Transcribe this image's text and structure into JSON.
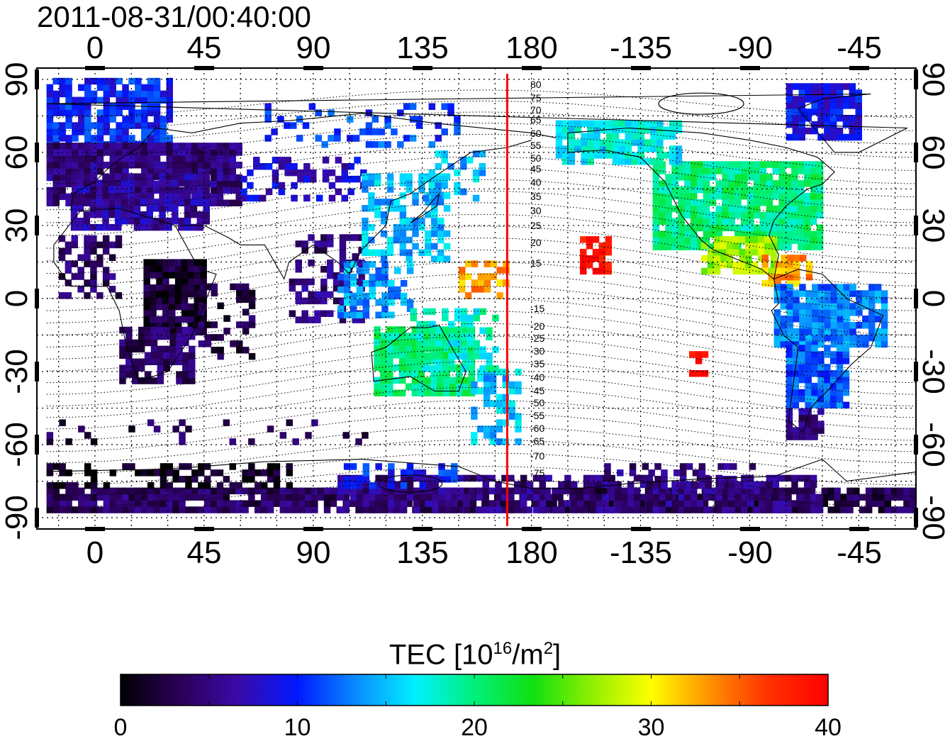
{
  "timestamp": "2011-08-31/00:40:00",
  "map": {
    "x_tick_labels": [
      "0",
      "45",
      "90",
      "135",
      "180",
      "-135",
      "-90",
      "-45"
    ],
    "y_tick_labels": [
      "90",
      "60",
      "30",
      "0",
      "-30",
      "-60",
      "-90"
    ],
    "red_line_longitude": 170,
    "dip_lat_labels_north": [
      "80",
      "75",
      "70",
      "65",
      "60",
      "55",
      "50",
      "45",
      "40",
      "35",
      "30",
      "25",
      "20",
      "15"
    ],
    "dip_lat_labels_south": [
      "-15",
      "-20",
      "-25",
      "-30",
      "-35",
      "-40",
      "-45",
      "-50",
      "-55",
      "-60",
      "-65",
      "-70",
      "-75"
    ],
    "colors": {
      "red_line": "#ff0000",
      "contour": "#000000"
    }
  },
  "colorbar": {
    "title_prefix": "TEC  [10",
    "title_sup": "16",
    "title_mid": "/m",
    "title_sup2": "2",
    "title_suffix": "]",
    "tick_labels": [
      "0",
      "10",
      "20",
      "30",
      "40"
    ],
    "range": [
      0,
      40
    ],
    "stops": [
      "#000000",
      "#2a0057",
      "#3a0aa8",
      "#0018ff",
      "#0a8cff",
      "#00f0ff",
      "#00f07a",
      "#10e010",
      "#90f000",
      "#ffff00",
      "#ff9000",
      "#ff3000",
      "#ff0000"
    ]
  }
}
